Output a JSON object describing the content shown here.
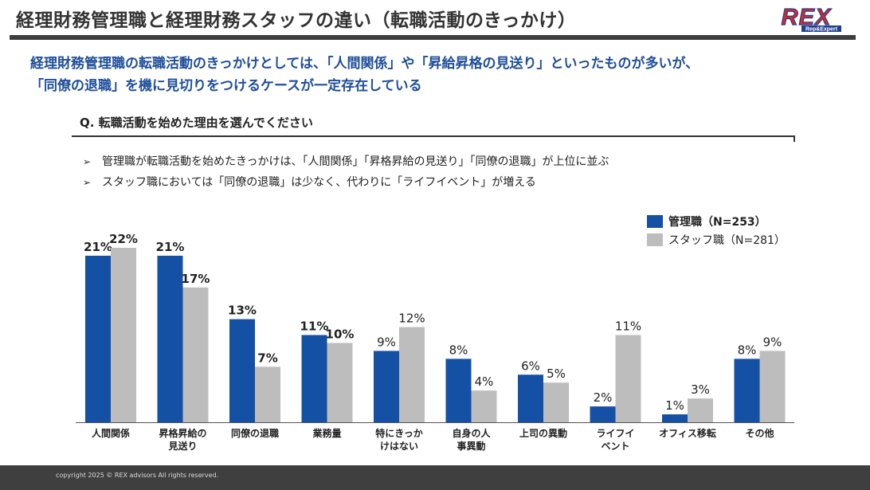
{
  "header": {
    "title": "経理財務管理職と経理財務スタッフの違い（転職活動のきっかけ）",
    "logo_main": "REX",
    "logo_sub": "Rep&Expert"
  },
  "headline": {
    "line1": "経理財務管理職の転職活動のきっかけとしては、「人間関係」や「昇給昇格の見送り」といったものが多いが、",
    "line2": "「同僚の退職」を機に見切りをつけるケースが一定存在している"
  },
  "question": "Q. 転職活動を始めた理由を選んでください",
  "bullets": [
    {
      "mark": "➢",
      "text": "管理職が転職活動を始めたきっかけは、「人間関係」「昇格昇給の見送り」「同僚の退職」が上位に並ぶ"
    },
    {
      "mark": "➢",
      "text": "スタッフ職においては「同僚の退職」は少なく、代わりに「ライフイベント」が増える"
    }
  ],
  "chart_data": {
    "type": "bar",
    "categories": [
      [
        "人間関係"
      ],
      [
        "昇格昇給の",
        "見送り"
      ],
      [
        "同僚の退職"
      ],
      [
        "業務量"
      ],
      [
        "特にきっか",
        "けはない"
      ],
      [
        "自身の人",
        "事異動"
      ],
      [
        "上司の異動"
      ],
      [
        "ライフイ",
        "ベント"
      ],
      [
        "オフィス移転"
      ],
      [
        "その他"
      ]
    ],
    "series": [
      {
        "name": "管理職（N=253）",
        "color": "#1450a3",
        "values": [
          21,
          21,
          13,
          11,
          9,
          8,
          6,
          2,
          1,
          8
        ],
        "bold_labels": [
          true,
          true,
          true,
          true,
          false,
          false,
          false,
          false,
          false,
          false
        ]
      },
      {
        "name": "スタッフ職（N=281）",
        "color": "#bdbdbd",
        "values": [
          22,
          17,
          7,
          10,
          12,
          4,
          5,
          11,
          3,
          9
        ],
        "bold_labels": [
          true,
          true,
          true,
          true,
          false,
          false,
          false,
          false,
          false,
          false
        ]
      }
    ],
    "unit": "%",
    "ylim": [
      0,
      22
    ],
    "legend_position": "top-right"
  },
  "footer": {
    "copyright": "copyright 2025 © REX advisors All rights reserved."
  }
}
